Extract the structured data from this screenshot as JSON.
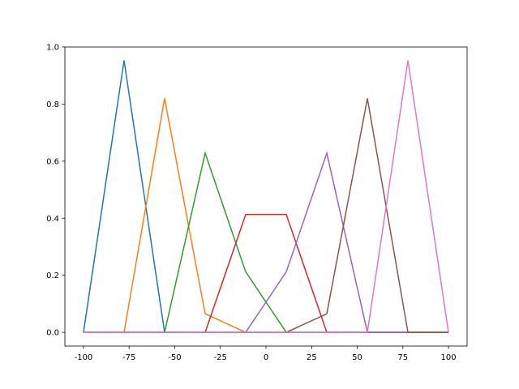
{
  "chart_data": {
    "type": "line",
    "x": [
      -100,
      -77.78,
      -55.56,
      -33.33,
      -11.11,
      11.11,
      33.33,
      55.56,
      77.78,
      100
    ],
    "series": [
      {
        "color": "#1f77b4",
        "values": [
          0,
          0.953,
          0,
          0,
          0,
          0,
          0,
          0,
          0,
          0
        ]
      },
      {
        "color": "#ff7f0e",
        "values": [
          0,
          0,
          0.82,
          0.065,
          0,
          0,
          0,
          0,
          0,
          0
        ]
      },
      {
        "color": "#2ca02c",
        "values": [
          0,
          0,
          0,
          0.628,
          0.212,
          0,
          0,
          0,
          0,
          0
        ]
      },
      {
        "color": "#d62728",
        "values": [
          0,
          0,
          0,
          0,
          0.413,
          0.413,
          0,
          0,
          0,
          0
        ]
      },
      {
        "color": "#9467bd",
        "values": [
          0,
          0,
          0,
          0,
          0,
          0.212,
          0.628,
          0,
          0,
          0
        ]
      },
      {
        "color": "#8c564b",
        "values": [
          0,
          0,
          0,
          0,
          0,
          0,
          0.065,
          0.82,
          0,
          0
        ]
      },
      {
        "color": "#e377c2",
        "values": [
          0,
          0,
          0,
          0,
          0,
          0,
          0,
          0,
          0.953,
          0
        ]
      }
    ],
    "xlim": [
      -110.2,
      110.2
    ],
    "ylim": [
      -0.048,
      1.0
    ],
    "xticks": [
      -100,
      -75,
      -50,
      -25,
      0,
      25,
      50,
      75,
      100
    ],
    "yticks": [
      {
        "value": 0,
        "label": "0.0"
      },
      {
        "value": 0.2,
        "label": "0.2"
      },
      {
        "value": 0.4,
        "label": "0.4"
      },
      {
        "value": 0.6,
        "label": "0.6"
      },
      {
        "value": 0.8,
        "label": "0.8"
      },
      {
        "value": 1,
        "label": "1.0"
      }
    ]
  }
}
